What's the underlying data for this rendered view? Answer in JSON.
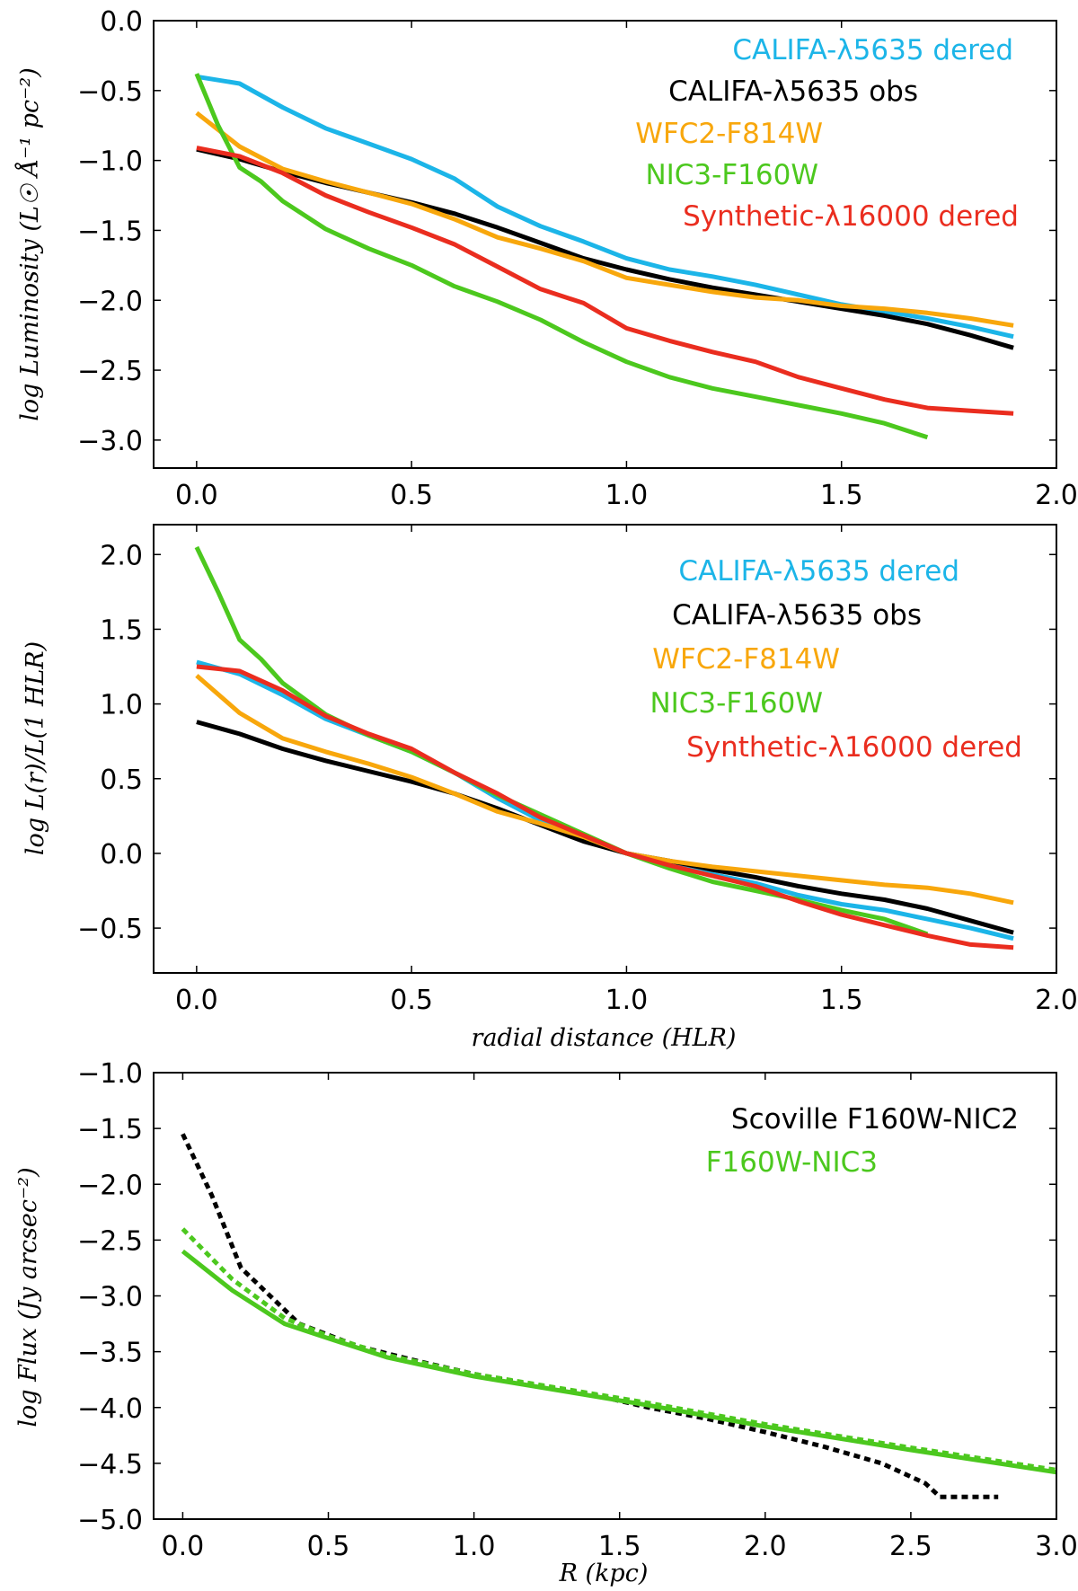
{
  "chart_data": [
    {
      "type": "line",
      "title": "",
      "xlabel": "",
      "ylabel": "log Luminosity (L☉ Å⁻¹ pc⁻²)",
      "xlim": [
        -0.1,
        2.0
      ],
      "ylim": [
        -3.2,
        0.0
      ],
      "xticks": [
        "0.0",
        "0.5",
        "1.0",
        "1.5",
        "2.0"
      ],
      "yticks": [
        "0.0",
        "−0.5",
        "−1.0",
        "−1.5",
        "−2.0",
        "−2.5",
        "−3.0"
      ],
      "legend_position": "top-right",
      "series": [
        {
          "name": "CALIFA-λ5635 dered",
          "color": "#1cb5e8",
          "style": "solid",
          "x": [
            0.0,
            0.1,
            0.2,
            0.3,
            0.4,
            0.5,
            0.6,
            0.7,
            0.8,
            0.9,
            1.0,
            1.1,
            1.2,
            1.3,
            1.4,
            1.5,
            1.6,
            1.7,
            1.8,
            1.9
          ],
          "y": [
            -0.4,
            -0.45,
            -0.62,
            -0.77,
            -0.88,
            -0.99,
            -1.13,
            -1.33,
            -1.47,
            -1.58,
            -1.7,
            -1.78,
            -1.83,
            -1.89,
            -1.96,
            -2.03,
            -2.08,
            -2.13,
            -2.19,
            -2.26
          ]
        },
        {
          "name": "CALIFA-λ5635 obs",
          "color": "#000000",
          "style": "solid",
          "x": [
            0.0,
            0.1,
            0.2,
            0.3,
            0.4,
            0.5,
            0.6,
            0.7,
            0.8,
            0.9,
            1.0,
            1.1,
            1.2,
            1.3,
            1.4,
            1.5,
            1.6,
            1.7,
            1.8,
            1.9
          ],
          "y": [
            -0.92,
            -0.99,
            -1.08,
            -1.16,
            -1.23,
            -1.3,
            -1.38,
            -1.48,
            -1.59,
            -1.7,
            -1.78,
            -1.85,
            -1.91,
            -1.96,
            -2.01,
            -2.06,
            -2.11,
            -2.17,
            -2.25,
            -2.34
          ]
        },
        {
          "name": "WFC2-F814W",
          "color": "#f8a70c",
          "style": "solid",
          "x": [
            0.0,
            0.1,
            0.2,
            0.3,
            0.4,
            0.5,
            0.6,
            0.7,
            0.8,
            0.9,
            1.0,
            1.1,
            1.2,
            1.3,
            1.4,
            1.5,
            1.6,
            1.7,
            1.8,
            1.9
          ],
          "y": [
            -0.66,
            -0.9,
            -1.06,
            -1.15,
            -1.23,
            -1.31,
            -1.42,
            -1.55,
            -1.63,
            -1.72,
            -1.84,
            -1.89,
            -1.94,
            -1.98,
            -2.0,
            -2.04,
            -2.06,
            -2.09,
            -2.13,
            -2.18
          ]
        },
        {
          "name": "NIC3-F160W",
          "color": "#4cc81e",
          "style": "solid",
          "x": [
            0.0,
            0.05,
            0.1,
            0.15,
            0.2,
            0.3,
            0.4,
            0.5,
            0.6,
            0.7,
            0.8,
            0.9,
            1.0,
            1.1,
            1.2,
            1.3,
            1.4,
            1.5,
            1.6,
            1.7
          ],
          "y": [
            -0.38,
            -0.75,
            -1.05,
            -1.15,
            -1.29,
            -1.49,
            -1.63,
            -1.75,
            -1.9,
            -2.01,
            -2.14,
            -2.3,
            -2.44,
            -2.55,
            -2.63,
            -2.69,
            -2.75,
            -2.81,
            -2.88,
            -2.98
          ]
        },
        {
          "name": "Synthetic-λ16000 dered",
          "color": "#ea2d1f",
          "style": "solid",
          "x": [
            0.0,
            0.1,
            0.2,
            0.3,
            0.4,
            0.5,
            0.6,
            0.7,
            0.8,
            0.9,
            1.0,
            1.1,
            1.2,
            1.3,
            1.4,
            1.5,
            1.6,
            1.7,
            1.8,
            1.9
          ],
          "y": [
            -0.91,
            -0.97,
            -1.09,
            -1.25,
            -1.37,
            -1.48,
            -1.6,
            -1.76,
            -1.92,
            -2.02,
            -2.2,
            -2.29,
            -2.37,
            -2.44,
            -2.55,
            -2.63,
            -2.71,
            -2.77,
            -2.79,
            -2.81
          ]
        }
      ]
    },
    {
      "type": "line",
      "title": "",
      "xlabel": "radial distance (HLR)",
      "ylabel": "log L(r)/L(1 HLR)",
      "xlim": [
        -0.1,
        2.0
      ],
      "ylim": [
        -0.8,
        2.2
      ],
      "xticks": [
        "0.0",
        "0.5",
        "1.0",
        "1.5",
        "2.0"
      ],
      "yticks": [
        "2.0",
        "1.5",
        "1.0",
        "0.5",
        "0.0",
        "−0.5"
      ],
      "legend_position": "top-right",
      "series": [
        {
          "name": "CALIFA-λ5635 dered",
          "color": "#1cb5e8",
          "style": "solid",
          "x": [
            0.0,
            0.1,
            0.2,
            0.3,
            0.4,
            0.5,
            0.6,
            0.7,
            0.8,
            0.9,
            1.0,
            1.1,
            1.2,
            1.3,
            1.4,
            1.5,
            1.6,
            1.7,
            1.8,
            1.9
          ],
          "y": [
            1.28,
            1.2,
            1.06,
            0.9,
            0.79,
            0.68,
            0.54,
            0.37,
            0.22,
            0.1,
            0.0,
            -0.08,
            -0.14,
            -0.2,
            -0.28,
            -0.34,
            -0.38,
            -0.44,
            -0.5,
            -0.57
          ]
        },
        {
          "name": "CALIFA-λ5635 obs",
          "color": "#000000",
          "style": "solid",
          "x": [
            0.0,
            0.1,
            0.2,
            0.3,
            0.4,
            0.5,
            0.6,
            0.7,
            0.8,
            0.9,
            1.0,
            1.1,
            1.2,
            1.3,
            1.4,
            1.5,
            1.6,
            1.7,
            1.8,
            1.9
          ],
          "y": [
            0.88,
            0.8,
            0.7,
            0.62,
            0.55,
            0.48,
            0.4,
            0.3,
            0.19,
            0.08,
            0.0,
            -0.05,
            -0.11,
            -0.16,
            -0.22,
            -0.27,
            -0.31,
            -0.37,
            -0.45,
            -0.53
          ]
        },
        {
          "name": "WFC2-F814W",
          "color": "#f8a70c",
          "style": "solid",
          "x": [
            0.0,
            0.1,
            0.2,
            0.3,
            0.4,
            0.5,
            0.6,
            0.7,
            0.8,
            0.9,
            1.0,
            1.1,
            1.2,
            1.3,
            1.4,
            1.5,
            1.6,
            1.7,
            1.8,
            1.9
          ],
          "y": [
            1.19,
            0.94,
            0.77,
            0.68,
            0.6,
            0.51,
            0.4,
            0.28,
            0.2,
            0.11,
            0.0,
            -0.05,
            -0.09,
            -0.12,
            -0.15,
            -0.18,
            -0.21,
            -0.23,
            -0.27,
            -0.33
          ]
        },
        {
          "name": "NIC3-F160W",
          "color": "#4cc81e",
          "style": "solid",
          "x": [
            0.0,
            0.05,
            0.1,
            0.15,
            0.2,
            0.3,
            0.4,
            0.5,
            0.6,
            0.7,
            0.8,
            0.9,
            1.0,
            1.1,
            1.2,
            1.3,
            1.4,
            1.5,
            1.6,
            1.7
          ],
          "y": [
            2.05,
            1.75,
            1.43,
            1.3,
            1.14,
            0.93,
            0.79,
            0.68,
            0.54,
            0.39,
            0.26,
            0.13,
            0.0,
            -0.1,
            -0.19,
            -0.25,
            -0.31,
            -0.38,
            -0.44,
            -0.54
          ]
        },
        {
          "name": "Synthetic-λ16000 dered",
          "color": "#ea2d1f",
          "style": "solid",
          "x": [
            0.0,
            0.1,
            0.2,
            0.3,
            0.4,
            0.5,
            0.6,
            0.7,
            0.8,
            0.9,
            1.0,
            1.1,
            1.2,
            1.3,
            1.4,
            1.5,
            1.6,
            1.7,
            1.8,
            1.9
          ],
          "y": [
            1.25,
            1.22,
            1.09,
            0.92,
            0.8,
            0.7,
            0.54,
            0.4,
            0.24,
            0.12,
            0.0,
            -0.08,
            -0.15,
            -0.22,
            -0.32,
            -0.41,
            -0.48,
            -0.55,
            -0.61,
            -0.63
          ]
        }
      ]
    },
    {
      "type": "line",
      "title": "",
      "xlabel": "R (kpc)",
      "ylabel": "log Flux (Jy arcsec⁻²)",
      "xlim": [
        -0.1,
        3.0
      ],
      "ylim": [
        -5.0,
        -1.0
      ],
      "xticks": [
        "0.0",
        "0.5",
        "1.0",
        "1.5",
        "2.0",
        "2.5",
        "3.0"
      ],
      "yticks": [
        "−1.0",
        "−1.5",
        "−2.0",
        "−2.5",
        "−3.0",
        "−3.5",
        "−4.0",
        "−4.5",
        "−5.0"
      ],
      "legend_position": "top-right",
      "series": [
        {
          "name": "Scoville F160W-NIC2",
          "color": "#000000",
          "style": "dotted",
          "x": [
            0.0,
            0.1,
            0.2,
            0.3,
            0.4,
            0.6,
            0.8,
            1.0,
            1.2,
            1.4,
            1.6,
            1.8,
            2.0,
            2.2,
            2.4,
            2.55,
            2.6,
            2.8
          ],
          "y": [
            -1.55,
            -2.1,
            -2.75,
            -3.0,
            -3.25,
            -3.45,
            -3.58,
            -3.7,
            -3.8,
            -3.88,
            -4.0,
            -4.1,
            -4.22,
            -4.35,
            -4.5,
            -4.68,
            -4.8,
            -4.8
          ]
        },
        {
          "name": "F160W-NIC3",
          "color": "#4cc81e",
          "style": "solid",
          "x": [
            0.0,
            0.17,
            0.35,
            0.5,
            0.7,
            1.0,
            1.3,
            1.6,
            2.0,
            2.5,
            3.0
          ],
          "y": [
            -2.6,
            -2.95,
            -3.25,
            -3.38,
            -3.55,
            -3.72,
            -3.85,
            -3.98,
            -4.17,
            -4.38,
            -4.58
          ]
        },
        {
          "name": "F160W-NIC3 (dotted)",
          "color": "#4cc81e",
          "style": "dotted",
          "x": [
            0.0,
            0.17,
            0.35,
            0.5,
            0.7,
            1.0,
            1.3,
            1.6,
            2.0,
            2.5,
            3.0
          ],
          "y": [
            -2.4,
            -2.85,
            -3.2,
            -3.36,
            -3.53,
            -3.7,
            -3.83,
            -3.96,
            -4.15,
            -4.36,
            -4.56
          ]
        }
      ]
    }
  ],
  "legends": [
    {
      "items": [
        {
          "label": "CALIFA-λ5635 dered",
          "color": "#1cb5e8"
        },
        {
          "label": "CALIFA-λ5635 obs",
          "color": "#000000"
        },
        {
          "label": "WFC2-F814W",
          "color": "#f8a70c"
        },
        {
          "label": "NIC3-F160W",
          "color": "#4cc81e"
        },
        {
          "label": "Synthetic-λ16000 dered",
          "color": "#ea2d1f"
        }
      ]
    },
    {
      "items": [
        {
          "label": "CALIFA-λ5635 dered",
          "color": "#1cb5e8"
        },
        {
          "label": "CALIFA-λ5635 obs",
          "color": "#000000"
        },
        {
          "label": "WFC2-F814W",
          "color": "#f8a70c"
        },
        {
          "label": "NIC3-F160W",
          "color": "#4cc81e"
        },
        {
          "label": "Synthetic-λ16000 dered",
          "color": "#ea2d1f"
        }
      ]
    },
    {
      "items": [
        {
          "label": "Scoville F160W-NIC2",
          "color": "#000000"
        },
        {
          "label": "F160W-NIC3",
          "color": "#4cc81e"
        }
      ]
    }
  ]
}
